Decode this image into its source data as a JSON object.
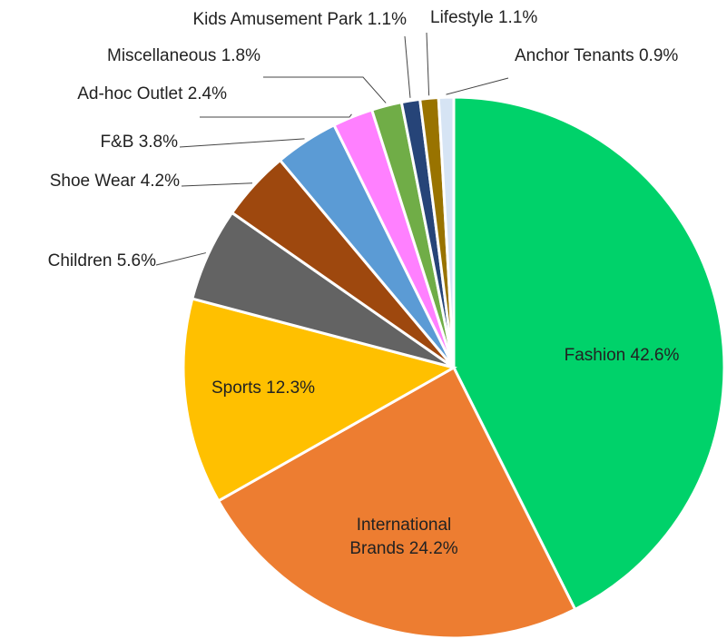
{
  "chart_data": {
    "type": "pie",
    "categories": [
      "Fashion",
      "International Brands",
      "Sports",
      "Children",
      "Shoe Wear",
      "F&B",
      "Ad-hoc Outlet",
      "Miscellaneous",
      "Kids Amusement Park",
      "Lifestyle",
      "Anchor Tenants"
    ],
    "values": [
      42.6,
      24.2,
      12.3,
      5.6,
      4.2,
      3.8,
      2.4,
      1.8,
      1.1,
      1.1,
      0.9
    ],
    "value_labels": [
      "42.6%",
      "24.2%",
      "12.3%",
      "5.6%",
      "4.2%",
      "3.8%",
      "2.4%",
      "1.8%",
      "1.1%",
      "1.1%",
      "0.9%"
    ],
    "colors": [
      "#00d26a",
      "#ed7d31",
      "#ffc000",
      "#636363",
      "#9e480e",
      "#5b9bd5",
      "#ff80ff",
      "#70ad47",
      "#264478",
      "#997300",
      "#d6e4f4"
    ]
  }
}
